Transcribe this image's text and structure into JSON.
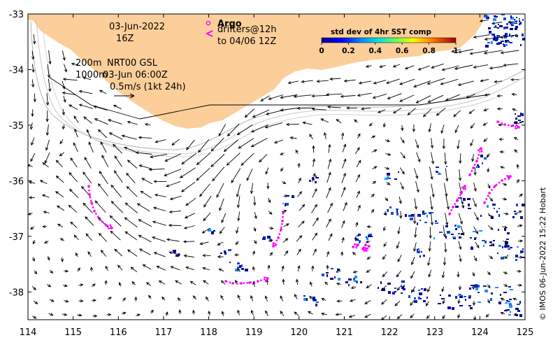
{
  "map": {
    "axes": {
      "x_ticks": [
        "114",
        "115",
        "116",
        "117",
        "118",
        "119",
        "120",
        "121",
        "122",
        "123",
        "124",
        "125"
      ],
      "y_ticks": [
        "-33",
        "-34",
        "-35",
        "-36",
        "-37",
        "-38"
      ],
      "lon_range": [
        114,
        125
      ],
      "lat_range": [
        -38.5,
        -33
      ]
    },
    "annotations": {
      "date": "03-Jun-2022",
      "time": "16Z",
      "depth": "200m",
      "product": "NRT00 GSL",
      "depth2": "1000m",
      "analysis_time": "03-Jun 06:00Z",
      "scale_label": "0.5m/s (1kt 24h)"
    },
    "legend": {
      "argo_label": "Argo",
      "drifter_label": "drifters@12h",
      "drifter_period": "to 04/06 12Z"
    },
    "colorbar": {
      "title": "std dev of 4hr SST comp",
      "ticks": [
        "0",
        "0.2",
        "0.4",
        "0.6",
        "0.8",
        "1"
      ]
    },
    "credit": "© IMOS 06-Jun-2022 15:22 Hobart",
    "colors": {
      "land": "#fccf9a",
      "drifter": "#ff00ff",
      "sst_low": "#00008b",
      "sst_mid": "#1e90ff"
    }
  }
}
